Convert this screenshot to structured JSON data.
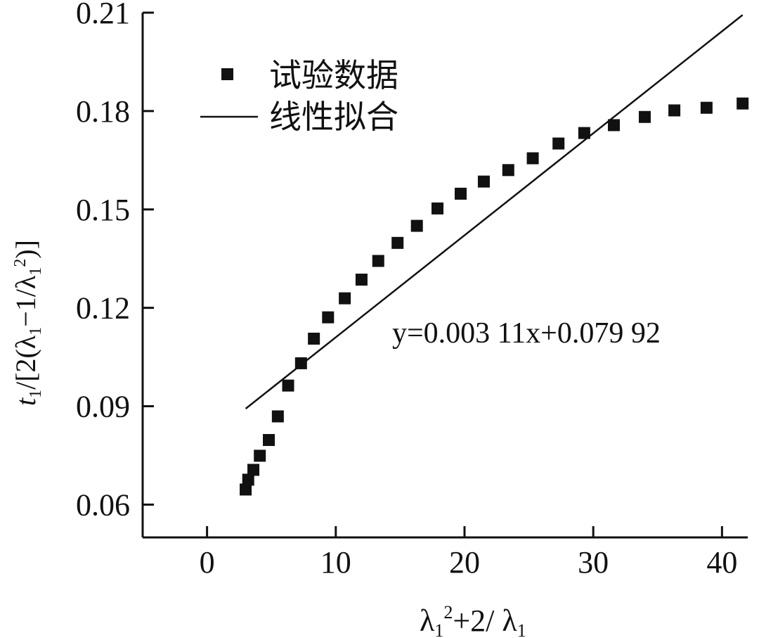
{
  "chart_data": {
    "type": "scatter",
    "xlabel": "λ₁²+2/λ₁",
    "ylabel": "t₁/[2(λ₁−1/λ₁²)]",
    "xlim": [
      -5,
      42
    ],
    "ylim": [
      0.05,
      0.21
    ],
    "x_ticks": [
      0,
      10,
      20,
      30,
      40
    ],
    "x_tick_labels": [
      "0",
      "10",
      "20",
      "30",
      "40"
    ],
    "y_ticks": [
      0.06,
      0.09,
      0.12,
      0.15,
      0.18,
      0.21
    ],
    "y_tick_labels": [
      "0.06",
      "0.09",
      "0.12",
      "0.15",
      "0.18",
      "0.21"
    ],
    "grid": false,
    "legend_position": "top-left",
    "legend": [
      {
        "label": "试验数据",
        "marker": "square"
      },
      {
        "label": "线性拟合",
        "marker": "line"
      }
    ],
    "series": [
      {
        "name": "试验数据",
        "type": "scatter",
        "x": [
          3.0,
          3.2,
          3.6,
          4.1,
          4.8,
          5.5,
          6.3,
          7.3,
          8.3,
          9.4,
          10.7,
          12.0,
          13.3,
          14.8,
          16.3,
          17.9,
          19.7,
          21.5,
          23.4,
          25.3,
          27.3,
          29.3,
          31.6,
          34.0,
          36.3,
          38.8,
          41.6
        ],
        "y": [
          0.0646,
          0.0676,
          0.0706,
          0.0749,
          0.0797,
          0.0869,
          0.0963,
          0.1031,
          0.1106,
          0.1171,
          0.1229,
          0.1286,
          0.1343,
          0.1398,
          0.145,
          0.1503,
          0.1548,
          0.1585,
          0.162,
          0.1656,
          0.1701,
          0.1733,
          0.1757,
          0.1782,
          0.1802,
          0.181,
          0.1823
        ]
      },
      {
        "name": "线性拟合",
        "type": "line",
        "slope": 0.00311,
        "intercept": 0.07992,
        "x_range": [
          3.0,
          41.6
        ]
      }
    ],
    "annotations": [
      {
        "text": "y=0.003 11x+0.079 92"
      }
    ]
  }
}
